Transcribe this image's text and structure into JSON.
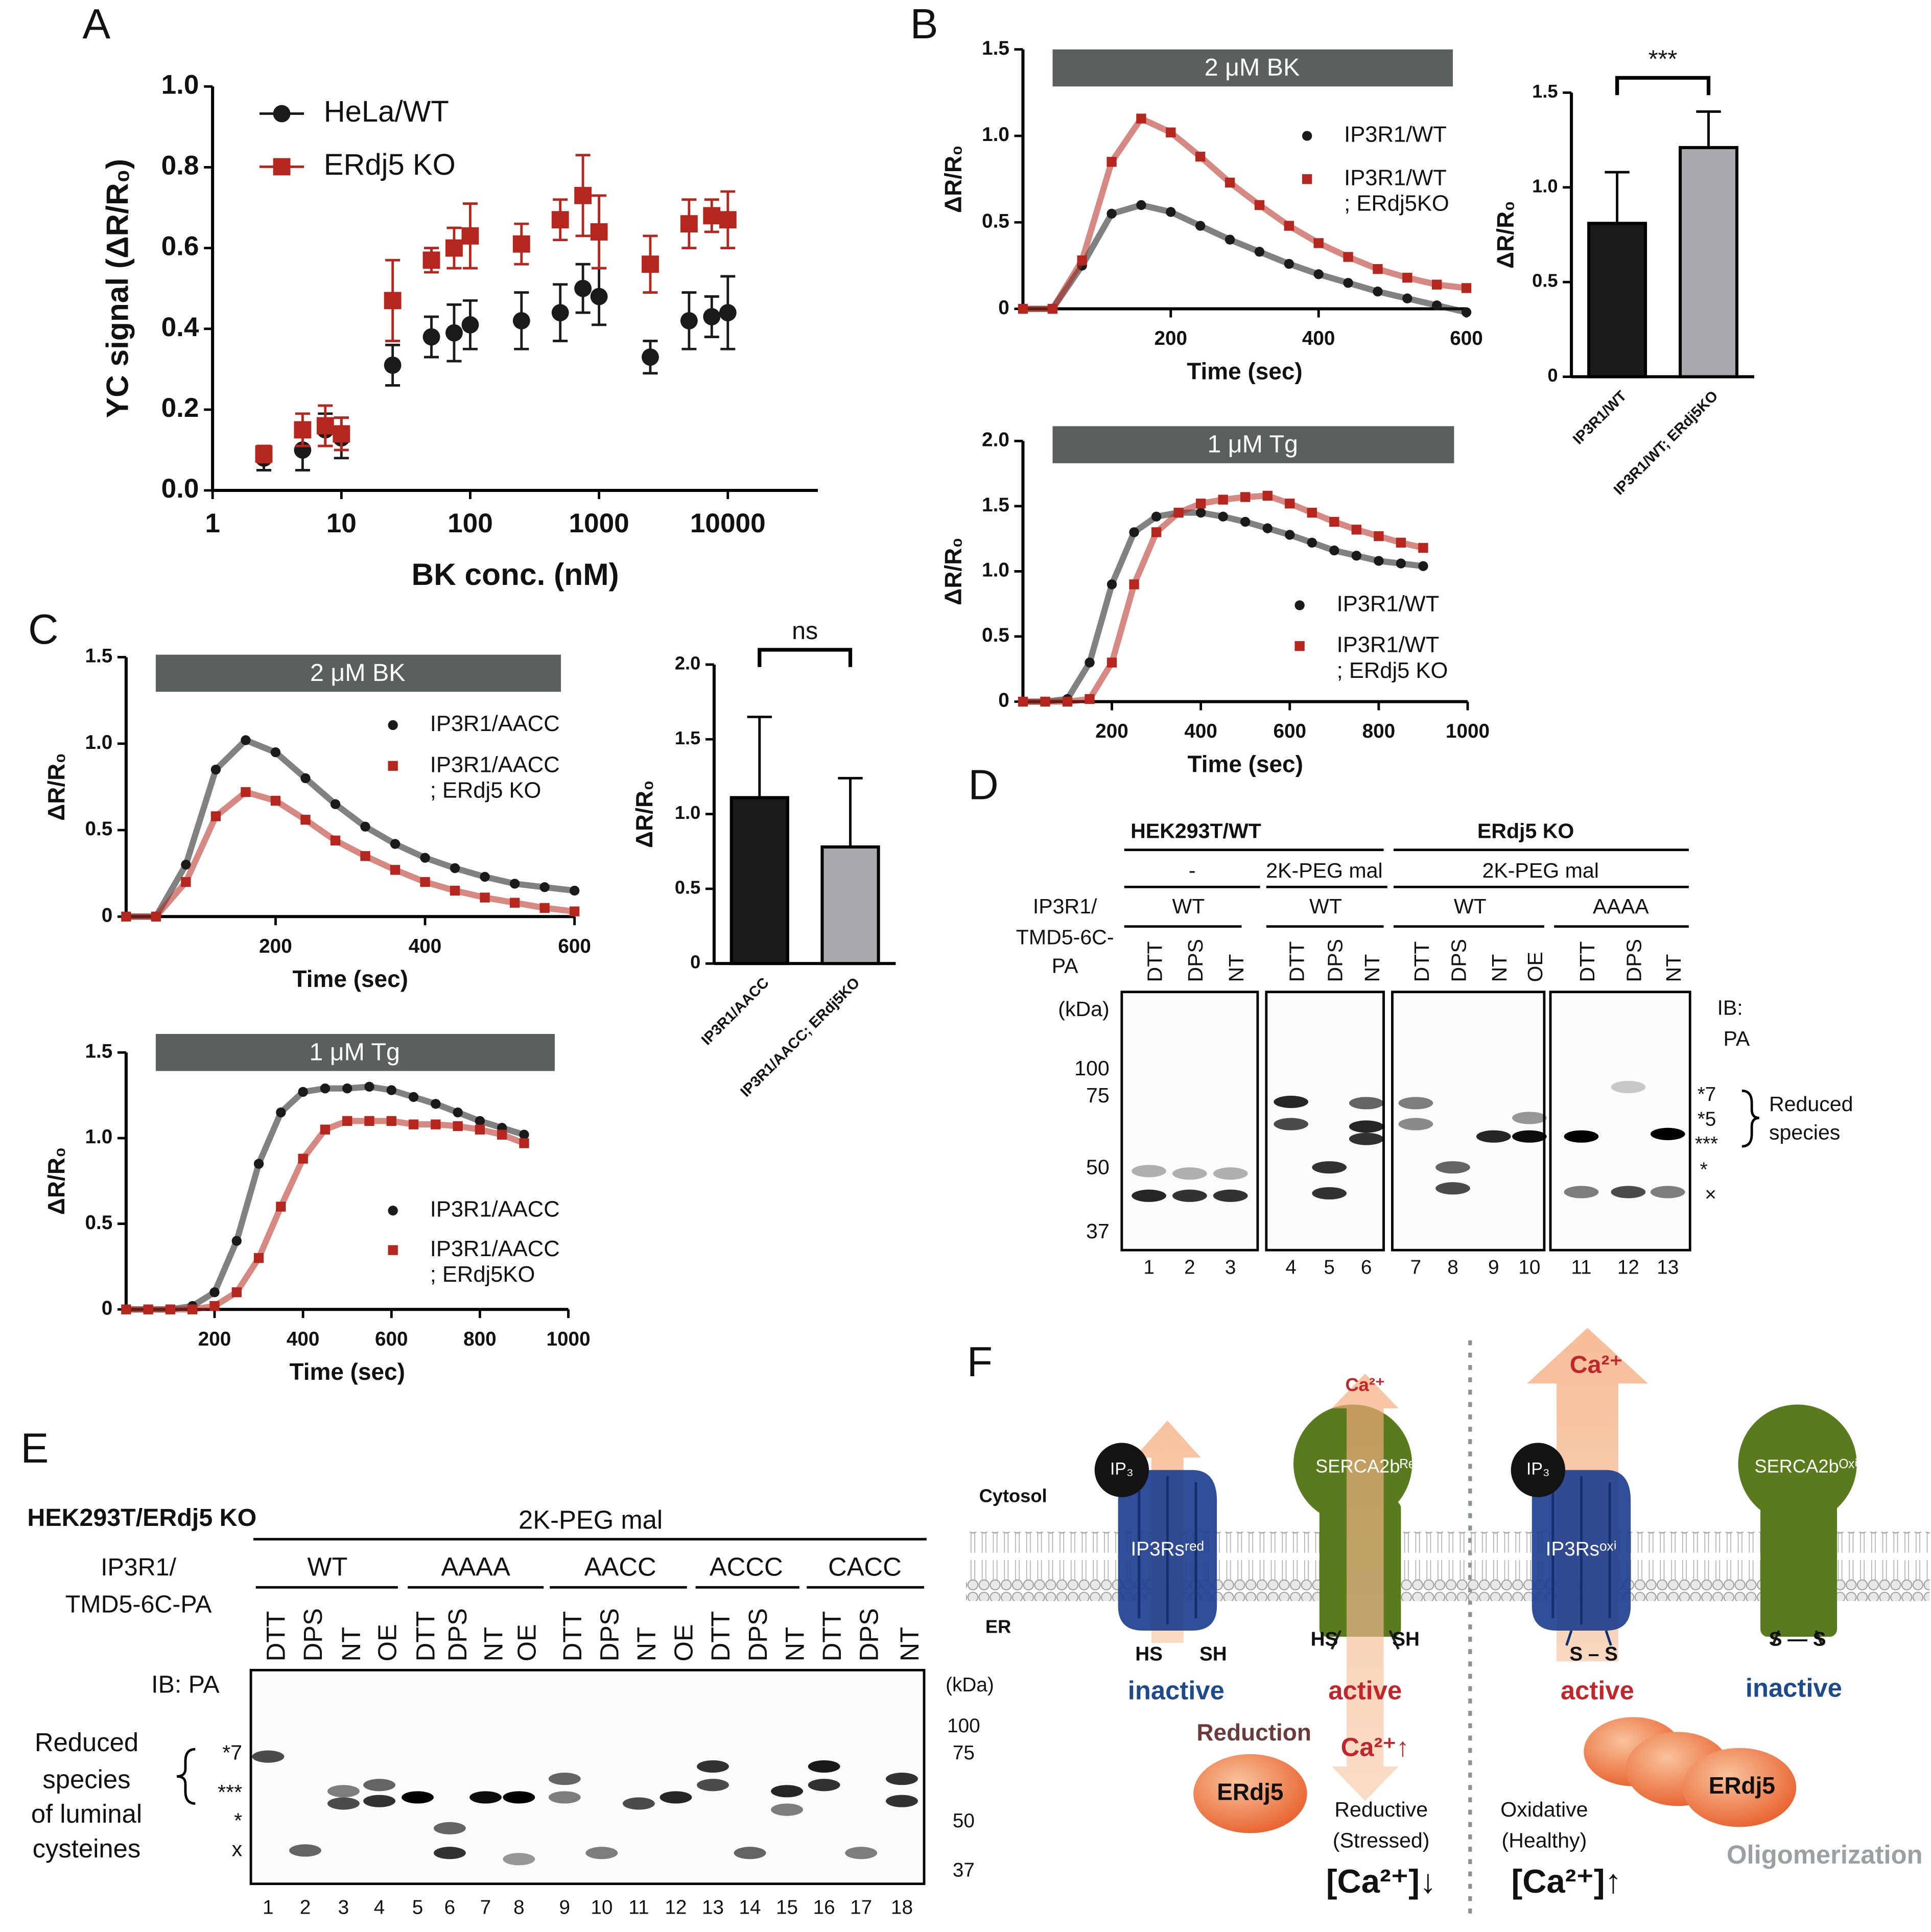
{
  "panel_labels": [
    "A",
    "B",
    "C",
    "D",
    "E",
    "F"
  ],
  "chart_data": [
    {
      "type": "scatter",
      "xlabel": "BK conc. (nM)",
      "ylabel": "YC signal (ΔR/R₀)",
      "xscale": "log",
      "xlim": [
        1,
        50000
      ],
      "ylim": [
        0,
        1
      ],
      "xticks": [
        1,
        10,
        100,
        1000,
        10000
      ],
      "yticks": [
        {
          "value": 0,
          "label": "0.0"
        },
        0.2,
        0.4,
        0.6,
        0.8,
        {
          "value": 1,
          "label": "1.0"
        }
      ],
      "legend": "upper left",
      "x": [
        2.5,
        5,
        7.5,
        10,
        25,
        50,
        75,
        100,
        250,
        500,
        750,
        1000,
        2500,
        5000,
        7500,
        10000
      ],
      "series": [
        {
          "name": "HeLa/WT",
          "color": "#1a1a1a",
          "marker": "circle",
          "values": [
            0.08,
            0.1,
            0.15,
            0.13,
            0.31,
            0.38,
            0.39,
            0.41,
            0.42,
            0.44,
            0.5,
            0.48,
            0.33,
            0.42,
            0.43,
            0.44
          ],
          "errors": [
            0.03,
            0.05,
            0.04,
            0.05,
            0.05,
            0.05,
            0.07,
            0.06,
            0.07,
            0.07,
            0.06,
            0.07,
            0.04,
            0.07,
            0.05,
            0.09
          ]
        },
        {
          "name": "ERdj5 KO",
          "color": "#b5261e",
          "marker": "square",
          "values": [
            0.09,
            0.15,
            0.16,
            0.14,
            0.47,
            0.57,
            0.6,
            0.63,
            0.61,
            0.67,
            0.73,
            0.64,
            0.56,
            0.66,
            0.68,
            0.67
          ],
          "errors": [
            0.02,
            0.04,
            0.05,
            0.04,
            0.1,
            0.03,
            0.05,
            0.08,
            0.05,
            0.05,
            0.1,
            0.09,
            0.07,
            0.06,
            0.04,
            0.07
          ]
        }
      ]
    },
    {
      "type": "line",
      "treatment": "2 μM BK",
      "xlabel": "Time (sec)",
      "ylabel": "ΔR/R₀",
      "xlim": [
        0,
        600
      ],
      "ylim": [
        0,
        1.5
      ],
      "xticks": [
        200,
        400,
        600
      ],
      "yticks": [
        0,
        0.5,
        {
          "value": 1,
          "label": "1.0"
        },
        1.5
      ],
      "legend": "upper right",
      "x": [
        0,
        40,
        80,
        120,
        160,
        200,
        240,
        280,
        320,
        360,
        400,
        440,
        480,
        520,
        560,
        600
      ],
      "series": [
        {
          "name": "IP3R1/WT",
          "color": "#1a1a1a",
          "marker": "circle",
          "values": [
            0,
            0,
            0.25,
            0.55,
            0.6,
            0.56,
            0.48,
            0.4,
            0.33,
            0.26,
            0.2,
            0.15,
            0.1,
            0.06,
            0.02,
            -0.02
          ]
        },
        {
          "name": "IP3R1/WT\n; ERdj5KO",
          "color": "#b5261e",
          "marker": "square",
          "values": [
            0,
            0,
            0.28,
            0.85,
            1.1,
            1.02,
            0.88,
            0.73,
            0.6,
            0.48,
            0.38,
            0.3,
            0.23,
            0.18,
            0.14,
            0.12
          ]
        }
      ]
    },
    {
      "type": "bar",
      "ylabel": "ΔR/R₀",
      "categories": [
        "IP3R1/WT",
        "IP3R1/WT; ERdj5KO"
      ],
      "values": [
        0.81,
        1.21
      ],
      "errors": [
        0.27,
        0.19
      ],
      "colors": [
        "#1a1a1a",
        "#a7a9ac"
      ],
      "ylim": [
        0,
        1.5
      ],
      "yticks": [
        0,
        0.5,
        {
          "value": 1,
          "label": "1.0"
        },
        1.5
      ],
      "annotation": "***"
    },
    {
      "type": "line",
      "treatment": "1 μM Tg",
      "xlabel": "Time (sec)",
      "ylabel": "ΔR/R₀",
      "xlim": [
        0,
        1000
      ],
      "ylim": [
        0,
        2
      ],
      "xticks": [
        200,
        400,
        600,
        800,
        1000
      ],
      "yticks": [
        0,
        0.5,
        {
          "value": 1,
          "label": "1.0"
        },
        1.5,
        {
          "value": 2,
          "label": "2.0"
        }
      ],
      "legend": "lower right",
      "x": [
        0,
        50,
        100,
        150,
        200,
        250,
        300,
        350,
        400,
        450,
        500,
        550,
        600,
        650,
        700,
        750,
        800,
        850,
        900
      ],
      "series": [
        {
          "name": "IP3R1/WT",
          "color": "#1a1a1a",
          "marker": "circle",
          "values": [
            0,
            0,
            0.02,
            0.3,
            0.9,
            1.3,
            1.42,
            1.45,
            1.45,
            1.42,
            1.38,
            1.33,
            1.28,
            1.22,
            1.16,
            1.12,
            1.08,
            1.06,
            1.04
          ]
        },
        {
          "name": "IP3R1/WT\n; ERdj5 KO",
          "color": "#b5261e",
          "marker": "square",
          "values": [
            0,
            0,
            0,
            0.02,
            0.3,
            0.9,
            1.3,
            1.45,
            1.52,
            1.55,
            1.57,
            1.58,
            1.52,
            1.45,
            1.38,
            1.32,
            1.27,
            1.22,
            1.18
          ]
        }
      ]
    },
    {
      "type": "line",
      "treatment": "2 μM BK",
      "xlabel": "Time (sec)",
      "ylabel": "ΔR/R₀",
      "xlim": [
        0,
        600
      ],
      "ylim": [
        0,
        1.5
      ],
      "xticks": [
        200,
        400,
        600
      ],
      "yticks": [
        0,
        0.5,
        {
          "value": 1,
          "label": "1.0"
        },
        1.5
      ],
      "legend": "upper right",
      "x": [
        0,
        40,
        80,
        120,
        160,
        200,
        240,
        280,
        320,
        360,
        400,
        440,
        480,
        520,
        560,
        600
      ],
      "series": [
        {
          "name": "IP3R1/AACC",
          "color": "#1a1a1a",
          "marker": "circle",
          "values": [
            0,
            0,
            0.3,
            0.85,
            1.02,
            0.95,
            0.8,
            0.65,
            0.52,
            0.42,
            0.34,
            0.28,
            0.23,
            0.19,
            0.17,
            0.15
          ]
        },
        {
          "name": "IP3R1/AACC\n; ERdj5 KO",
          "color": "#b5261e",
          "marker": "square",
          "values": [
            0,
            0,
            0.2,
            0.58,
            0.72,
            0.67,
            0.56,
            0.44,
            0.35,
            0.27,
            0.2,
            0.15,
            0.11,
            0.08,
            0.05,
            0.03
          ]
        }
      ]
    },
    {
      "type": "bar",
      "ylabel": "ΔR/R₀",
      "categories": [
        "IP3R1/AACC",
        "IP3R1/AACC; ERdj5KO"
      ],
      "values": [
        1.11,
        0.78
      ],
      "errors": [
        0.54,
        0.46
      ],
      "colors": [
        "#1a1a1a",
        "#a7a9ac"
      ],
      "ylim": [
        0,
        2
      ],
      "yticks": [
        0,
        0.5,
        {
          "value": 1,
          "label": "1.0"
        },
        1.5,
        {
          "value": 2,
          "label": "2.0"
        }
      ],
      "annotation": "ns"
    },
    {
      "type": "line",
      "treatment": "1 μM Tg",
      "xlabel": "Time (sec)",
      "ylabel": "ΔR/R₀",
      "xlim": [
        0,
        1000
      ],
      "ylim": [
        0,
        1.5
      ],
      "xticks": [
        200,
        400,
        600,
        800,
        1000
      ],
      "yticks": [
        0,
        0.5,
        {
          "value": 1,
          "label": "1.0"
        },
        1.5
      ],
      "legend": "lower right",
      "x": [
        0,
        50,
        100,
        150,
        200,
        250,
        300,
        350,
        400,
        450,
        500,
        550,
        600,
        650,
        700,
        750,
        800,
        850,
        900
      ],
      "series": [
        {
          "name": "IP3R1/AACC",
          "color": "#1a1a1a",
          "marker": "circle",
          "values": [
            0,
            0,
            0,
            0.02,
            0.1,
            0.4,
            0.85,
            1.15,
            1.27,
            1.29,
            1.29,
            1.3,
            1.28,
            1.24,
            1.2,
            1.15,
            1.1,
            1.06,
            1.02
          ]
        },
        {
          "name": "IP3R1/AACC\n; ERdj5KO",
          "color": "#b5261e",
          "marker": "square",
          "values": [
            0,
            0,
            0,
            0,
            0.02,
            0.1,
            0.3,
            0.6,
            0.88,
            1.05,
            1.1,
            1.1,
            1.1,
            1.08,
            1.08,
            1.07,
            1.05,
            1.02,
            0.97
          ]
        }
      ]
    }
  ],
  "blot_d": {
    "groups": [
      "HEK293T/WT",
      "ERdj5 KO"
    ],
    "treatments": [
      "-",
      "2K-PEG mal",
      "2K-PEG mal"
    ],
    "construct_label": [
      "IP3R1/",
      "TMD5-6C-",
      "PA"
    ],
    "constructs": [
      "WT",
      "WT",
      "WT",
      "AAAA"
    ],
    "lanes": [
      "DTT",
      "DPS",
      "NT",
      "DTT",
      "DPS",
      "NT",
      "DTT",
      "DPS",
      "NT",
      "OE",
      "DTT",
      "DPS",
      "NT"
    ],
    "lane_numbers": [
      1,
      2,
      3,
      4,
      5,
      6,
      7,
      8,
      9,
      10,
      11,
      12,
      13
    ],
    "mw_unit": "(kDa)",
    "mw": [
      100,
      75,
      50,
      37
    ],
    "ib": [
      "IB:",
      "PA"
    ],
    "band_marks": [
      "*7",
      "*5",
      "***",
      "*",
      "×"
    ],
    "bracket_label": [
      "Reduced",
      "species"
    ]
  },
  "blot_e": {
    "title": "HEK293T/ERdj5 KO",
    "treatment": "2K-PEG mal",
    "construct_label": [
      "IP3R1/",
      "TMD5-6C-PA"
    ],
    "constructs": [
      "WT",
      "AAAA",
      "AACC",
      "ACCC",
      "CACC"
    ],
    "lanes": [
      "DTT",
      "DPS",
      "NT",
      "OE",
      "DTT",
      "DPS",
      "NT",
      "OE",
      "DTT",
      "DPS",
      "NT",
      "OE",
      "DTT",
      "DPS",
      "NT",
      "DTT",
      "DPS",
      "NT"
    ],
    "lane_numbers": [
      1,
      2,
      3,
      4,
      5,
      6,
      7,
      8,
      9,
      10,
      11,
      12,
      13,
      14,
      15,
      16,
      17,
      18
    ],
    "ib": "IB: PA",
    "mw_unit": "(kDa)",
    "mw": [
      100,
      75,
      50,
      37
    ],
    "band_marks": [
      "*7",
      "***",
      "*",
      "x"
    ],
    "side_label": [
      "Reduced",
      "species",
      "of luminal",
      "cysteines"
    ]
  },
  "diagram_f": {
    "cytosol": "Cytosol",
    "er": "ER",
    "left": {
      "ip3": "IP₃",
      "ip3r": "IP3Rsʳᵉᵈ",
      "ip3r_thiols": [
        "HS",
        "SH"
      ],
      "ip3r_state": "inactive",
      "reduction": "Reduction",
      "erdj5": "ERdj5",
      "serca": "SERCA2bᴿᵉᵈ",
      "ca_top": "Ca²⁺",
      "serca_thiols": [
        "HS",
        "SH"
      ],
      "serca_state": "active",
      "ca_bottom": "Ca²⁺↑",
      "condition": [
        "Reductive",
        "(Stressed)"
      ],
      "ca_level": "[Ca²⁺]↓"
    },
    "right": {
      "ip3": "IP₃",
      "ip3r": "IP3Rsᵒˣⁱ",
      "ca_top": "Ca²⁺",
      "ip3r_bond": "S – S",
      "ip3r_state": "active",
      "serca": "SERCA2bᴼˣⁱ",
      "serca_bond": "S — S",
      "serca_state": "inactive",
      "erdj5": "ERdj5",
      "oligomerization": "Oligomerization",
      "condition": [
        "Oxidative",
        "(Healthy)"
      ],
      "ca_level": "[Ca²⁺]↑"
    }
  }
}
